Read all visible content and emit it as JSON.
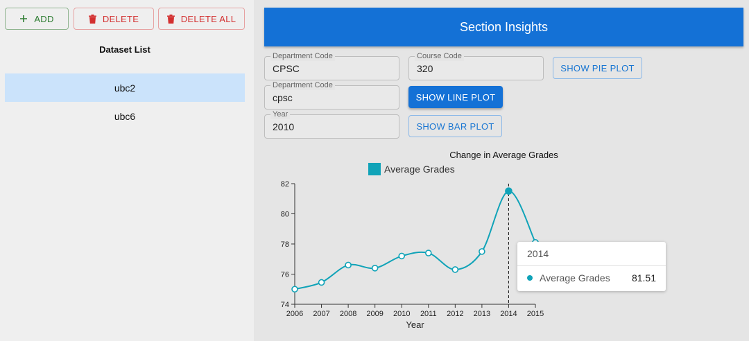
{
  "sidebar": {
    "add_label": "ADD",
    "delete_label": "DELETE",
    "delete_all_label": "DELETE ALL",
    "list_title": "Dataset List",
    "items": [
      {
        "label": "ubc2",
        "selected": true
      },
      {
        "label": "ubc6",
        "selected": false
      }
    ]
  },
  "header": {
    "title": "Section Insights"
  },
  "form": {
    "dept_code_1": {
      "label": "Department Code",
      "value": "CPSC"
    },
    "course_code": {
      "label": "Course Code",
      "value": "320"
    },
    "dept_code_2": {
      "label": "Department Code",
      "value": "cpsc"
    },
    "year": {
      "label": "Year",
      "value": "2010"
    },
    "show_pie_label": "SHOW PIE PLOT",
    "show_line_label": "SHOW LINE PLOT",
    "show_bar_label": "SHOW BAR PLOT"
  },
  "chart_data": {
    "type": "line",
    "title": "Change in Average Grades",
    "xlabel": "Year",
    "ylabel": "",
    "x": [
      2006,
      2007,
      2008,
      2009,
      2010,
      2011,
      2012,
      2013,
      2014,
      2015
    ],
    "series": [
      {
        "name": "Average Grades",
        "values": [
          75.0,
          75.45,
          76.6,
          76.4,
          77.2,
          77.4,
          76.3,
          77.5,
          81.51,
          78.1
        ]
      }
    ],
    "ylim": [
      74,
      82
    ],
    "yticks": [
      74,
      76,
      78,
      80,
      82
    ],
    "grid": false,
    "legend": "top-left",
    "color": "#10a3b8",
    "highlight_x": 2014
  },
  "tooltip": {
    "title": "2014",
    "series": "Average Grades",
    "value": "81.51"
  }
}
